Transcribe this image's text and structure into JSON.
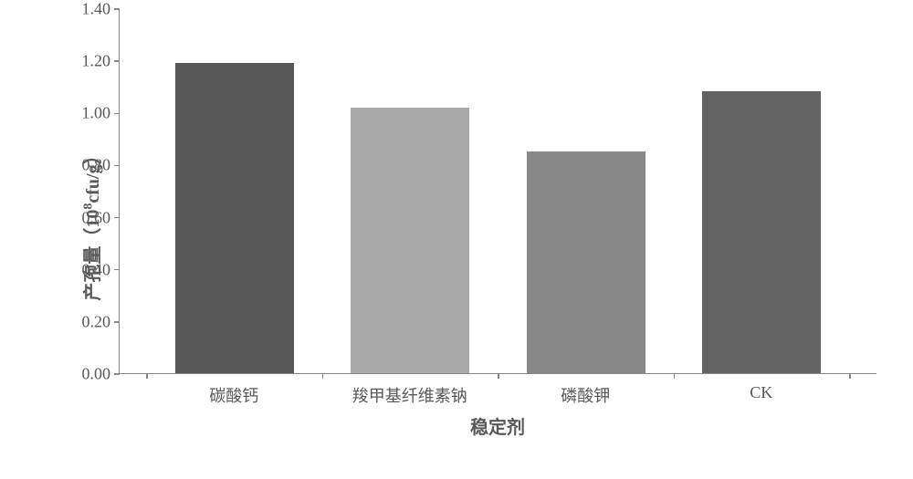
{
  "chart": {
    "type": "bar",
    "ylabel_html": "产孢量（10<sup>8</sup>cfu/g）",
    "xlabel": "稳定剂",
    "label_fontsize_pt": 15,
    "tick_fontsize_pt": 13.5,
    "axis_color": "#868686",
    "text_color": "#595959",
    "background_color": "#ffffff",
    "ylim": [
      0.0,
      1.4
    ],
    "ytick_step": 0.2,
    "yticks": [
      "0.00",
      "0.20",
      "0.40",
      "0.60",
      "0.80",
      "1.00",
      "1.20",
      "1.40"
    ],
    "categories": [
      "碳酸钙",
      "羧甲基纤维素钠",
      "磷酸钾",
      "CK"
    ],
    "values": [
      1.19,
      1.02,
      0.85,
      1.08
    ],
    "bar_colors": [
      "#575757",
      "#a9a9a9",
      "#888888",
      "#636363"
    ],
    "bar_width_ratio": 0.68
  }
}
